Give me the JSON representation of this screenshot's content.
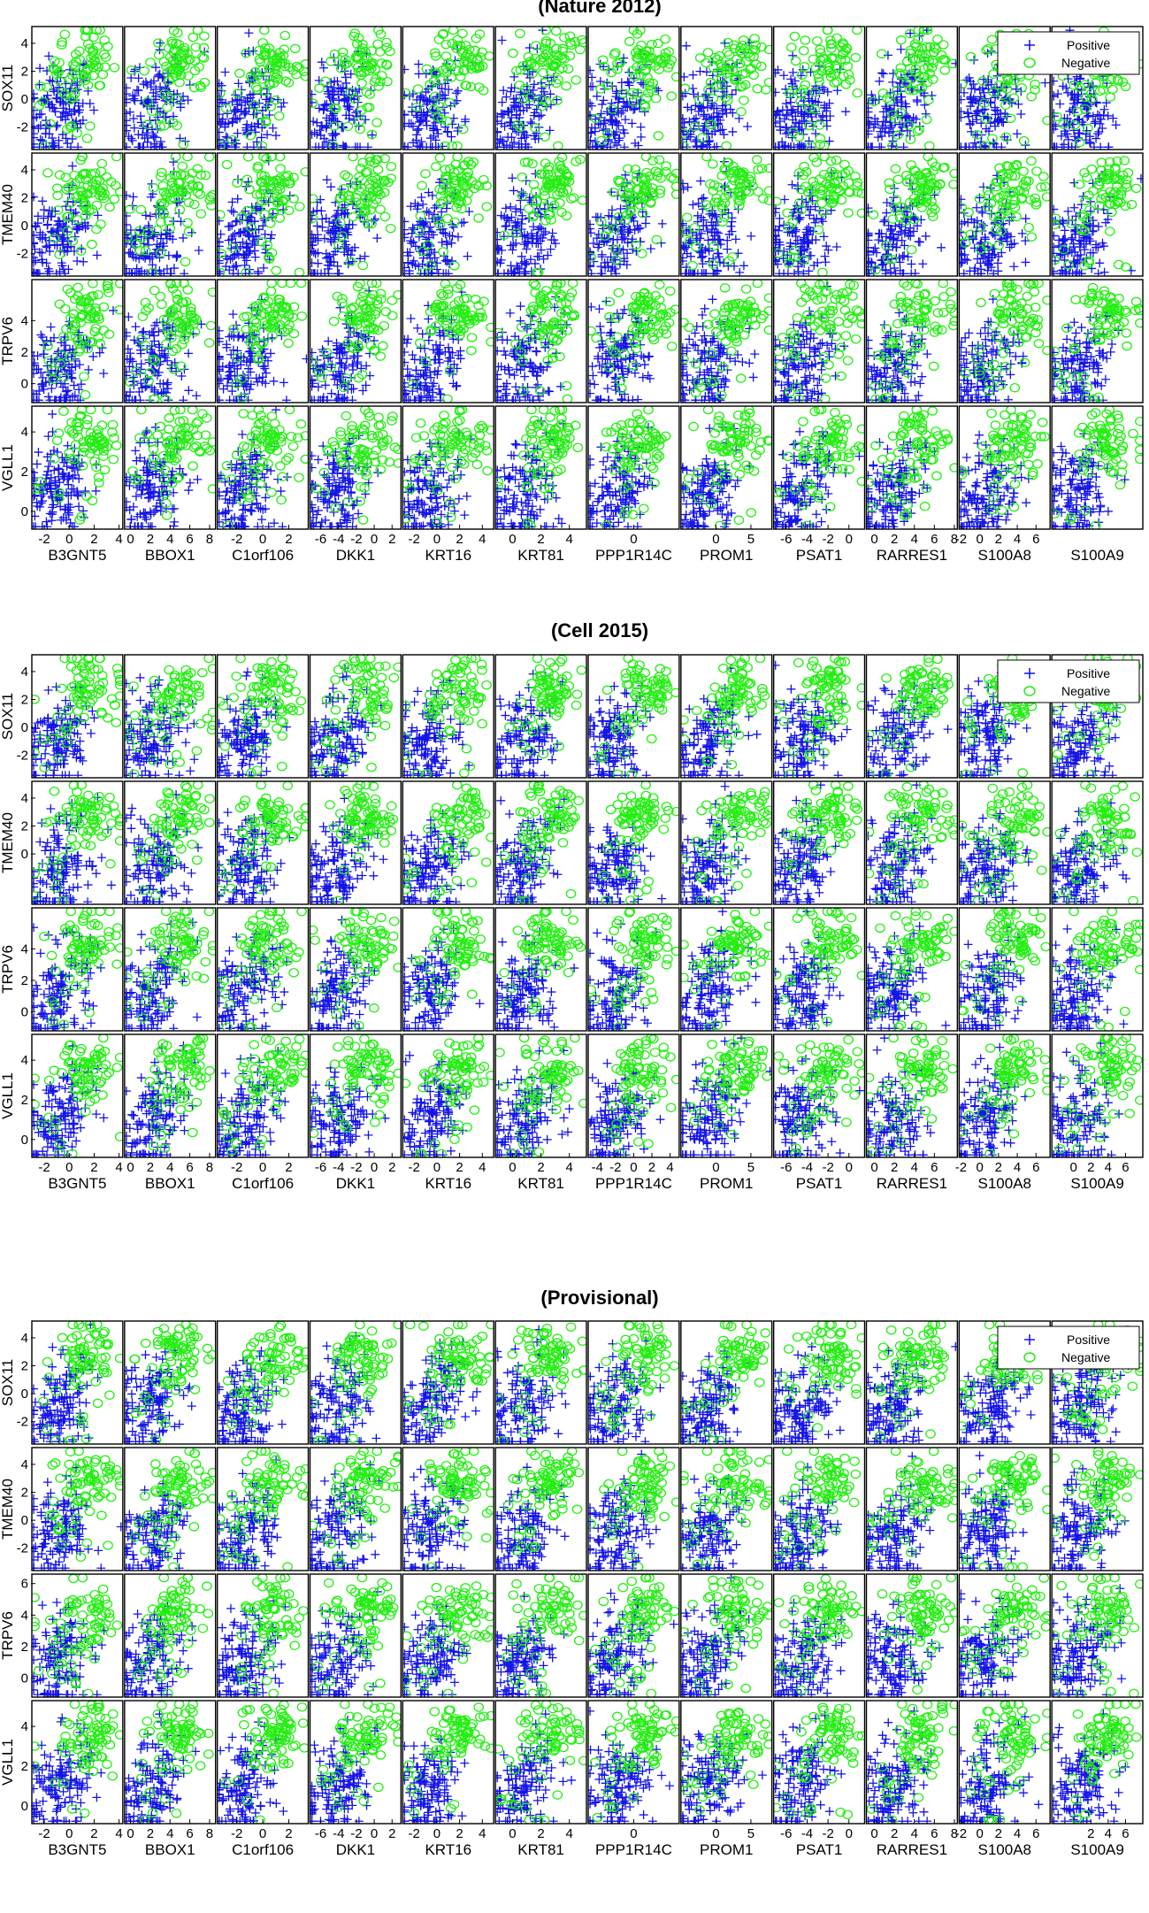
{
  "chart_data": [
    {
      "type": "scatter",
      "title": "(Nature 2012)",
      "x_variables": [
        {
          "name": "B3GNT5",
          "ticks": [
            -2,
            0,
            2,
            4
          ],
          "xlim": [
            -3,
            4.3
          ]
        },
        {
          "name": "BBOX1",
          "ticks": [
            0,
            2,
            4,
            6,
            8
          ],
          "xlim": [
            -0.6,
            8.6
          ]
        },
        {
          "name": "C1orf106",
          "ticks": [
            -2,
            0,
            2
          ],
          "xlim": [
            -3.5,
            3.5
          ]
        },
        {
          "name": "DKK1",
          "ticks": [
            -6,
            -4,
            -2,
            0,
            2
          ],
          "xlim": [
            -7.2,
            3
          ]
        },
        {
          "name": "KRT16",
          "ticks": [
            -2,
            0,
            2,
            4
          ],
          "xlim": [
            -3,
            5
          ]
        },
        {
          "name": "KRT81",
          "ticks": [
            0,
            2,
            4
          ],
          "xlim": [
            -1.2,
            5.2
          ]
        },
        {
          "name": "PPP1R14C",
          "ticks": [
            0
          ],
          "xlim": [
            -5,
            5
          ]
        },
        {
          "name": "PROM1",
          "ticks": [
            0,
            5
          ],
          "xlim": [
            -5,
            8
          ]
        },
        {
          "name": "PSAT1",
          "ticks": [
            -6,
            -4,
            -2,
            0
          ],
          "xlim": [
            -7.2,
            1.5
          ]
        },
        {
          "name": "RARRES1",
          "ticks": [
            0,
            2,
            4,
            6,
            8
          ],
          "xlim": [
            -0.8,
            8.3
          ]
        },
        {
          "name": "S100A8",
          "ticks": [
            -2,
            0,
            2,
            4,
            6
          ],
          "xlim": [
            -2.2,
            7.5
          ]
        },
        {
          "name": "S100A9",
          "ticks": [],
          "xlim": [
            -2.5,
            8
          ]
        }
      ],
      "y_variables": [
        {
          "name": "SOX11",
          "ticks": [
            -2,
            0,
            2,
            4
          ],
          "ylim": [
            -3.6,
            5.2
          ]
        },
        {
          "name": "TMEM40",
          "ticks": [
            -2,
            0,
            2,
            4
          ],
          "ylim": [
            -3.6,
            5.2
          ]
        },
        {
          "name": "TRPV6",
          "ticks": [
            0,
            2,
            4
          ],
          "ylim": [
            -1.2,
            6.6
          ]
        },
        {
          "name": "VGLL1",
          "ticks": [
            0,
            2,
            4
          ],
          "ylim": [
            -0.9,
            5.3
          ]
        }
      ],
      "series": [
        {
          "name": "Positive",
          "marker": "+",
          "color": "#1414e6"
        },
        {
          "name": "Negative",
          "marker": "o",
          "color": "#22ee11"
        }
      ],
      "legend": "top-right",
      "grid": false
    },
    {
      "type": "scatter",
      "title": "(Cell 2015)",
      "x_variables": [
        {
          "name": "B3GNT5",
          "ticks": [
            -2,
            0,
            2,
            4
          ],
          "xlim": [
            -3,
            4.3
          ]
        },
        {
          "name": "BBOX1",
          "ticks": [
            0,
            2,
            4,
            6,
            8
          ],
          "xlim": [
            -0.6,
            8.6
          ]
        },
        {
          "name": "C1orf106",
          "ticks": [
            -2,
            0,
            2
          ],
          "xlim": [
            -3.5,
            3.5
          ]
        },
        {
          "name": "DKK1",
          "ticks": [
            -6,
            -4,
            -2,
            0,
            2
          ],
          "xlim": [
            -7.2,
            3
          ]
        },
        {
          "name": "KRT16",
          "ticks": [
            -2,
            0,
            2,
            4
          ],
          "xlim": [
            -3,
            5
          ]
        },
        {
          "name": "KRT81",
          "ticks": [
            0,
            2,
            4
          ],
          "xlim": [
            -1.2,
            5.2
          ]
        },
        {
          "name": "PPP1R14C",
          "ticks": [
            -4,
            -2,
            0,
            2,
            4
          ],
          "xlim": [
            -5,
            5
          ]
        },
        {
          "name": "PROM1",
          "ticks": [
            0,
            5
          ],
          "xlim": [
            -5,
            8
          ]
        },
        {
          "name": "PSAT1",
          "ticks": [
            -6,
            -4,
            -2,
            0
          ],
          "xlim": [
            -7.2,
            1.5
          ]
        },
        {
          "name": "RARRES1",
          "ticks": [
            0,
            2,
            4,
            6
          ],
          "xlim": [
            -0.8,
            8.3
          ]
        },
        {
          "name": "S100A8",
          "ticks": [
            -2,
            0,
            2,
            4,
            6
          ],
          "xlim": [
            -2.2,
            7.5
          ]
        },
        {
          "name": "S100A9",
          "ticks": [
            0,
            2,
            4,
            6
          ],
          "xlim": [
            -2.5,
            8
          ]
        }
      ],
      "y_variables": [
        {
          "name": "SOX11",
          "ticks": [
            -2,
            0,
            2,
            4
          ],
          "ylim": [
            -3.6,
            5.2
          ]
        },
        {
          "name": "TMEM40",
          "ticks": [
            0,
            2,
            4
          ],
          "ylim": [
            -3.6,
            5.2
          ]
        },
        {
          "name": "TRPV6",
          "ticks": [
            0,
            2,
            4
          ],
          "ylim": [
            -1.2,
            6.6
          ]
        },
        {
          "name": "VGLL1",
          "ticks": [
            0,
            2,
            4
          ],
          "ylim": [
            -0.9,
            5.3
          ]
        }
      ],
      "series": [
        {
          "name": "Positive",
          "marker": "+",
          "color": "#1414e6"
        },
        {
          "name": "Negative",
          "marker": "o",
          "color": "#22ee11"
        }
      ],
      "legend": "top-right",
      "grid": false
    },
    {
      "type": "scatter",
      "title": "(Provisional)",
      "x_variables": [
        {
          "name": "B3GNT5",
          "ticks": [
            -2,
            0,
            2,
            4
          ],
          "xlim": [
            -3,
            4.3
          ]
        },
        {
          "name": "BBOX1",
          "ticks": [
            0,
            2,
            4,
            6,
            8
          ],
          "xlim": [
            -0.6,
            8.6
          ]
        },
        {
          "name": "C1orf106",
          "ticks": [
            -2,
            0,
            2
          ],
          "xlim": [
            -3.5,
            3.5
          ]
        },
        {
          "name": "DKK1",
          "ticks": [
            -6,
            -4,
            -2,
            0,
            2
          ],
          "xlim": [
            -7.2,
            3
          ]
        },
        {
          "name": "KRT16",
          "ticks": [
            -2,
            0,
            2,
            4
          ],
          "xlim": [
            -3,
            5
          ]
        },
        {
          "name": "KRT81",
          "ticks": [
            0,
            2,
            4
          ],
          "xlim": [
            -1.2,
            5.2
          ]
        },
        {
          "name": "PPP1R14C",
          "ticks": [
            0
          ],
          "xlim": [
            -5,
            5
          ]
        },
        {
          "name": "PROM1",
          "ticks": [
            0,
            5
          ],
          "xlim": [
            -5,
            8
          ]
        },
        {
          "name": "PSAT1",
          "ticks": [
            -6,
            -4,
            -2,
            0
          ],
          "xlim": [
            -7.2,
            1.5
          ]
        },
        {
          "name": "RARRES1",
          "ticks": [
            0,
            2,
            4,
            6,
            8
          ],
          "xlim": [
            -0.8,
            8.3
          ]
        },
        {
          "name": "S100A8",
          "ticks": [
            -2,
            0,
            2,
            4,
            6
          ],
          "xlim": [
            -2.2,
            7.5
          ]
        },
        {
          "name": "S100A9",
          "ticks": [
            2,
            4,
            6
          ],
          "xlim": [
            -2.5,
            8
          ]
        }
      ],
      "y_variables": [
        {
          "name": "SOX11",
          "ticks": [
            -2,
            0,
            2,
            4
          ],
          "ylim": [
            -3.6,
            5.2
          ]
        },
        {
          "name": "TMEM40",
          "ticks": [
            -2,
            0,
            2,
            4
          ],
          "ylim": [
            -3.6,
            5.2
          ]
        },
        {
          "name": "TRPV6",
          "ticks": [
            0,
            2,
            4,
            6
          ],
          "ylim": [
            -1.2,
            6.6
          ]
        },
        {
          "name": "VGLL1",
          "ticks": [
            0,
            2,
            4
          ],
          "ylim": [
            -0.9,
            5.3
          ]
        }
      ],
      "series": [
        {
          "name": "Positive",
          "marker": "+",
          "color": "#1414e6"
        },
        {
          "name": "Negative",
          "marker": "o",
          "color": "#22ee11"
        }
      ],
      "legend": "top-right",
      "grid": false
    }
  ]
}
